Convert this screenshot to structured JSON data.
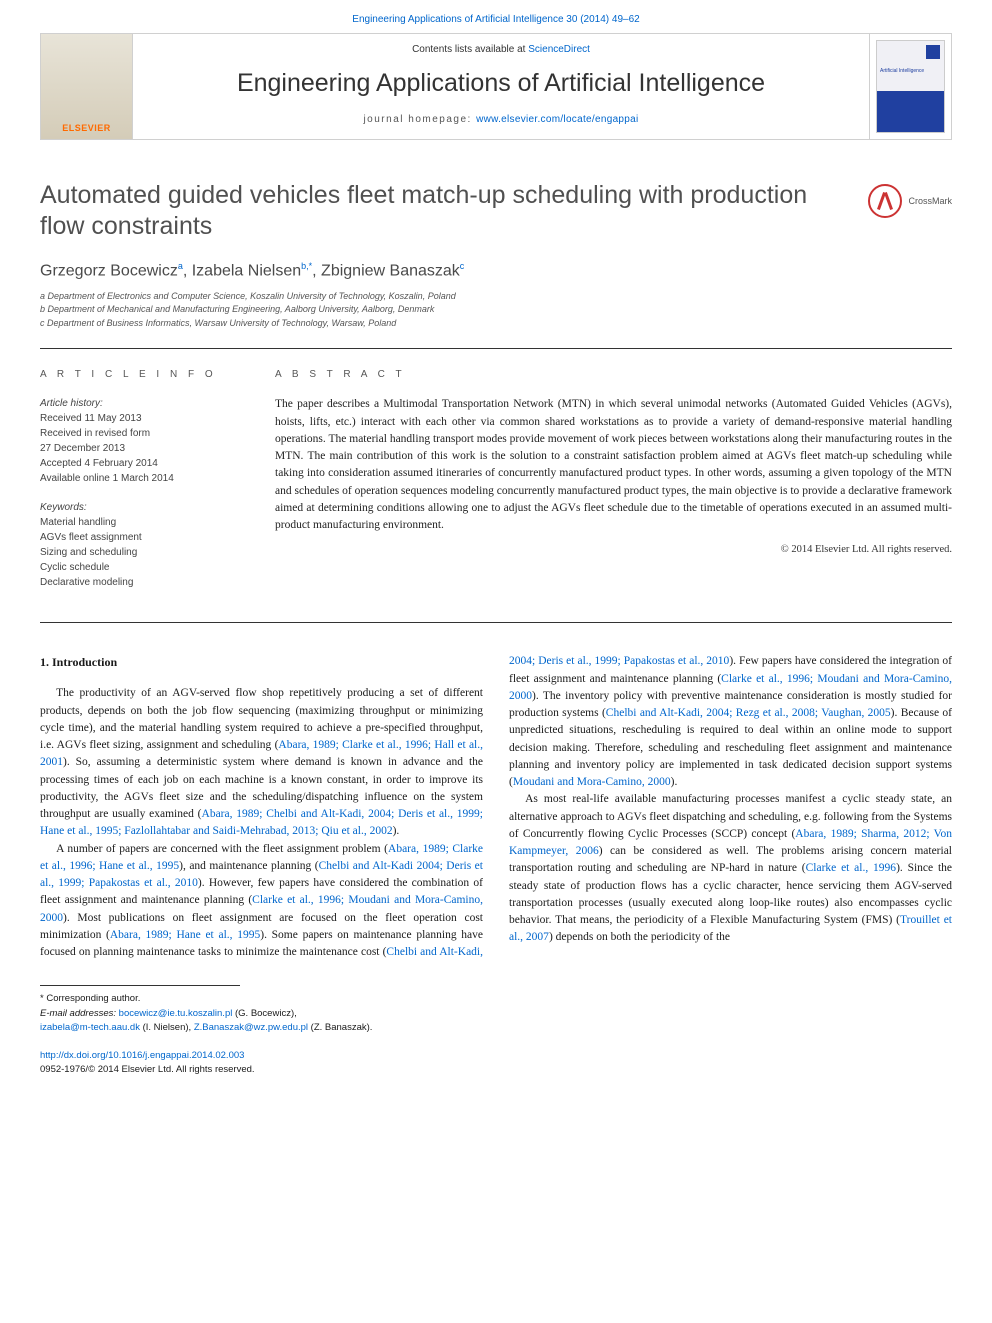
{
  "top_citation": {
    "text": "Engineering Applications of Artificial Intelligence 30 (2014) 49–62",
    "color": "#0066cc"
  },
  "header": {
    "contents_prefix": "Contents lists available at ",
    "contents_link": "ScienceDirect",
    "journal_title": "Engineering Applications of Artificial Intelligence",
    "homepage_prefix": "journal homepage: ",
    "homepage_link": "www.elsevier.com/locate/engappai",
    "publisher_logo": "ELSEVIER",
    "cover_text": "Artificial Intelligence"
  },
  "crossmark": {
    "label": "CrossMark"
  },
  "article": {
    "title": "Automated guided vehicles fleet match-up scheduling with production flow constraints",
    "authors_html": [
      {
        "name": "Grzegorz Bocewicz",
        "sup": "a"
      },
      {
        "name": "Izabela Nielsen",
        "sup": "b,*",
        "link": true
      },
      {
        "name": "Zbigniew Banaszak",
        "sup": "c"
      }
    ],
    "author_separator": ", ",
    "affiliations": [
      "a Department of Electronics and Computer Science, Koszalin University of Technology, Koszalin, Poland",
      "b Department of Mechanical and Manufacturing Engineering, Aalborg University, Aalborg, Denmark",
      "c Department of Business Informatics, Warsaw University of Technology, Warsaw, Poland"
    ]
  },
  "meta": {
    "info_label": "A R T I C L E   I N F O",
    "history_label": "Article history:",
    "history": [
      "Received 11 May 2013",
      "Received in revised form",
      "27 December 2013",
      "Accepted 4 February 2014",
      "Available online 1 March 2014"
    ],
    "keywords_label": "Keywords:",
    "keywords": [
      "Material handling",
      "AGVs fleet assignment",
      "Sizing and scheduling",
      "Cyclic schedule",
      "Declarative modeling"
    ]
  },
  "abstract": {
    "label": "A B S T R A C T",
    "text": "The paper describes a Multimodal Transportation Network (MTN) in which several unimodal networks (Automated Guided Vehicles (AGVs), hoists, lifts, etc.) interact with each other via common shared workstations as to provide a variety of demand-responsive material handling operations. The material handling transport modes provide movement of work pieces between workstations along their manufacturing routes in the MTN. The main contribution of this work is the solution to a constraint satisfaction problem aimed at AGVs fleet match-up scheduling while taking into consideration assumed itineraries of concurrently manufactured product types. In other words, assuming a given topology of the MTN and schedules of operation sequences modeling concurrently manufactured product types, the main objective is to provide a declarative framework aimed at determining conditions allowing one to adjust the AGVs fleet schedule due to the timetable of operations executed in an assumed multi-product manufacturing environment.",
    "copyright": "© 2014 Elsevier Ltd. All rights reserved."
  },
  "body": {
    "section_heading": "1.  Introduction",
    "p1_pre": "The productivity of an AGV-served flow shop repetitively producing a set of different products, depends on both the job flow sequencing (maximizing throughput or minimizing cycle time), and the material handling system required to achieve a pre-specified throughput, i.e. AGVs fleet sizing, assignment and scheduling (",
    "p1_link1": "Abara, 1989; Clarke et al., 1996; Hall et al., 2001",
    "p1_mid1": "). So, assuming a deterministic system where demand is known in advance and the processing times of each job on each machine is a known constant, in order to improve its productivity, the AGVs fleet size and the scheduling/dispatching influence on the system throughput are usually examined (",
    "p1_link2": "Abara, 1989; Chelbi and Alt-Kadi, 2004; Deris et al., 1999; Hane et al., 1995; Fazlollahtabar and Saidi-Mehrabad, 2013; Qiu et al., 2002",
    "p1_post": ").",
    "p2_pre": "A number of papers are concerned with the fleet assignment problem (",
    "p2_link1": "Abara, 1989; Clarke et al., 1996; Hane et al., 1995",
    "p2_mid1": "), and maintenance planning (",
    "p2_link2": "Chelbi and Alt-Kadi 2004; Deris et al., 1999; Papakostas et al., 2010",
    "p2_mid2": "). However, few papers have considered the combination of fleet assignment and maintenance planning (",
    "p2_link3": "Clarke et al., 1996; Moudani and Mora-Camino, 2000",
    "p2_mid3": "). Most publications on fleet assignment are focused on the fleet operation cost minimization (",
    "p2_link4": "Abara, 1989; Hane et al., 1995",
    "p2_mid4": "). Some papers on maintenance planning have focused on planning maintenance tasks to minimize the maintenance cost (",
    "p2_link5": "Chelbi and Alt-Kadi, 2004; Deris et al., 1999; Papakostas et al., 2010",
    "p2_mid5": "). Few papers have considered the integration of fleet assignment and maintenance planning (",
    "p2_link6": "Clarke et al., 1996; Moudani and Mora-Camino, 2000",
    "p2_mid6": "). The inventory policy with preventive maintenance consideration is mostly studied for production systems (",
    "p2_link7": "Chelbi and Alt-Kadi, 2004; Rezg et al., 2008; Vaughan, 2005",
    "p2_mid7": "). Because of unpredicted situations, rescheduling is required to deal within an online mode to support decision making. Therefore, scheduling and rescheduling fleet assignment and maintenance planning and inventory policy are implemented in task dedicated decision support systems (",
    "p2_link8": "Moudani and Mora-Camino, 2000",
    "p2_post": ").",
    "p3_pre": "As most real-life available manufacturing processes manifest a cyclic steady state, an alternative approach to AGVs fleet dispatching and scheduling, e.g. following from the Systems of Concurrently flowing Cyclic Processes (SCCP) concept (",
    "p3_link1": "Abara, 1989; Sharma, 2012; Von Kampmeyer, 2006",
    "p3_mid1": ") can be considered as well. The problems arising concern material transportation routing and scheduling are NP-hard in nature (",
    "p3_link2": "Clarke et al., 1996",
    "p3_mid2": "). Since the steady state of production flows has a cyclic character, hence servicing them AGV-served transportation processes (usually executed along loop-like routes) also encompasses cyclic behavior. That means, the periodicity of a Flexible Manufacturing System (FMS) (",
    "p3_link3": "Trouillet et al., 2007",
    "p3_post": ") depends on both the periodicity of the"
  },
  "footnotes": {
    "corresponding": "* Corresponding author.",
    "email_label": "E-mail addresses: ",
    "email1": "bocewicz@ie.tu.koszalin.pl",
    "email1_name": " (G. Bocewicz),",
    "email2": "izabela@m-tech.aau.dk",
    "email2_name": " (I. Nielsen), ",
    "email3": "Z.Banaszak@wz.pw.edu.pl",
    "email3_name": " (Z. Banaszak)."
  },
  "article_id": {
    "doi": "http://dx.doi.org/10.1016/j.engappai.2014.02.003",
    "issn": "0952-1976/",
    "copyright": "© 2014 Elsevier Ltd. All rights reserved."
  },
  "colors": {
    "link": "#0066cc",
    "text": "#1a1a1a",
    "grey": "#505050",
    "accent_orange": "#ff6a00",
    "rule": "#333333"
  }
}
